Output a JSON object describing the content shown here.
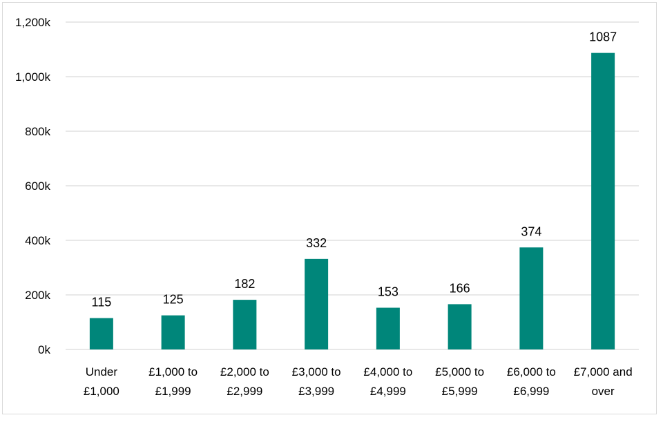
{
  "chart_data": {
    "type": "bar",
    "categories": [
      [
        "Under",
        "£1,000"
      ],
      [
        "£1,000 to",
        "£1,999"
      ],
      [
        "£2,000 to",
        "£2,999"
      ],
      [
        "£3,000 to",
        "£3,999"
      ],
      [
        "£4,000 to",
        "£4,999"
      ],
      [
        "£5,000 to",
        "£5,999"
      ],
      [
        "£6,000 to",
        "£6,999"
      ],
      [
        "£7,000 and",
        "over"
      ]
    ],
    "values": [
      115,
      125,
      182,
      332,
      153,
      166,
      374,
      1087
    ],
    "data_labels": [
      "115",
      "125",
      "182",
      "332",
      "153",
      "166",
      "374",
      "1087"
    ],
    "ylim": [
      0,
      1200
    ],
    "yticks": [
      0,
      200,
      400,
      600,
      800,
      1000,
      1200
    ],
    "ytick_labels": [
      "0k",
      "200k",
      "400k",
      "600k",
      "800k",
      "1,000k",
      "1,200k"
    ],
    "grid": true,
    "legend": "none",
    "bar_color": "#00867a",
    "grid_color": "#d9d9d9"
  }
}
